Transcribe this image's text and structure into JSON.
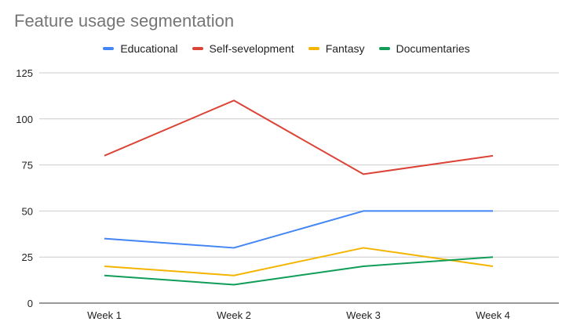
{
  "chart_data": {
    "type": "line",
    "title": "Feature usage segmentation",
    "categories": [
      "Week 1",
      "Week 2",
      "Week 3",
      "Week 4"
    ],
    "series": [
      {
        "name": "Educational",
        "color": "#4285F4",
        "values": [
          35,
          30,
          50,
          50
        ]
      },
      {
        "name": "Self-sevelopment",
        "color": "#DB4437",
        "values": [
          80,
          110,
          70,
          80
        ]
      },
      {
        "name": "Fantasy",
        "color": "#F4B400",
        "values": [
          20,
          15,
          30,
          20
        ]
      },
      {
        "name": "Documentaries",
        "color": "#0F9D58",
        "values": [
          15,
          10,
          20,
          25
        ]
      }
    ],
    "yticks": [
      0,
      25,
      50,
      75,
      100,
      125
    ],
    "ylim": [
      0,
      125
    ],
    "grid": true,
    "legend_position": "top"
  }
}
